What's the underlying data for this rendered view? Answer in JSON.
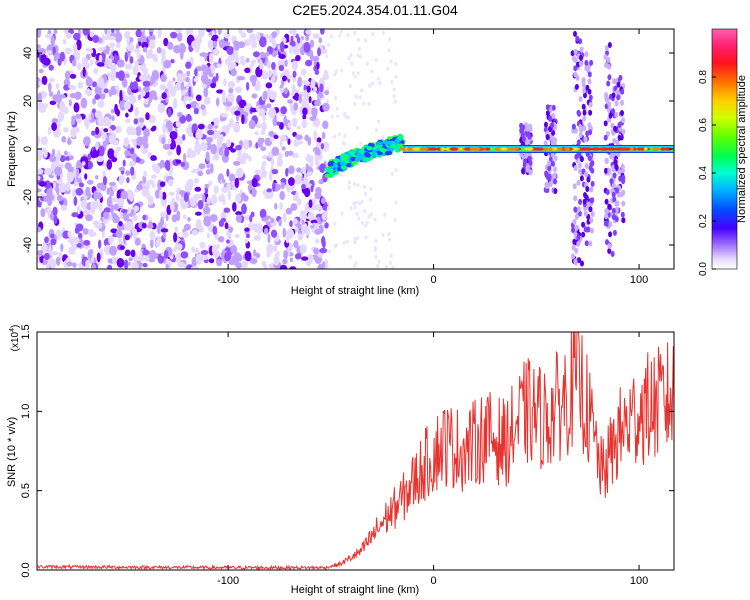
{
  "figure": {
    "title": "C2E5.2024.354.01.11.G04"
  },
  "chart_data": [
    {
      "type": "heatmap",
      "title": "C2E5.2024.354.01.11.G04",
      "xlabel": "Height of straight line (km)",
      "ylabel": "Frequency (Hz)",
      "xlim": [
        -193,
        117
      ],
      "ylim": [
        -50,
        50
      ],
      "x_ticks": [
        -100,
        0,
        100
      ],
      "y_ticks": [
        -40,
        -20,
        0,
        20,
        40
      ],
      "colorbar": {
        "label": "Normalized spectral amplitude",
        "range": [
          0.0,
          1.0
        ],
        "ticks": [
          0.0,
          0.2,
          0.4,
          0.6,
          0.8
        ],
        "tick_labels": [
          "0.0",
          "0.2",
          "0.4",
          "0.6",
          "0.8"
        ],
        "colormap": [
          "#ffffff",
          "#d9c8ff",
          "#7b00ff",
          "#2b00ff",
          "#0050ff",
          "#00c8ff",
          "#00ff80",
          "#40ff00",
          "#c0ff00",
          "#ffd000",
          "#ff8000",
          "#ff0040",
          "#ff50a0"
        ]
      },
      "regions": [
        {
          "description_key": "noise",
          "x_range": [
            -193,
            -52
          ],
          "amplitude": 0.05
        },
        {
          "description_key": "signal-rising",
          "x_range": [
            -52,
            -15
          ],
          "freq_start": -10,
          "freq_end": 3,
          "amplitude": 0.45
        },
        {
          "description_key": "signal-carrier",
          "x_range": [
            -15,
            117
          ],
          "freq": 0,
          "amplitude": 0.85
        }
      ]
    },
    {
      "type": "line",
      "xlabel": "Height of straight line (km)",
      "ylabel": "SNR (10 * v/v)",
      "scale_label": "(x10",
      "scale_exponent": "4",
      "scale_suffix": ")",
      "xlim": [
        -193,
        117
      ],
      "ylim": [
        0,
        1.5
      ],
      "x_ticks": [
        -100,
        0,
        100
      ],
      "y_ticks": [
        0.0,
        0.5,
        1.0,
        1.5
      ],
      "y_tick_labels": [
        "0.0",
        "0.5",
        "1.0",
        "1.5"
      ],
      "line_color": "#e8322e",
      "series_envelope": [
        {
          "x": -193,
          "y": 0.02
        },
        {
          "x": -100,
          "y": 0.015
        },
        {
          "x": -52,
          "y": 0.015
        },
        {
          "x": -45,
          "y": 0.04
        },
        {
          "x": -35,
          "y": 0.12
        },
        {
          "x": -25,
          "y": 0.3
        },
        {
          "x": -15,
          "y": 0.45
        },
        {
          "x": -5,
          "y": 0.65
        },
        {
          "x": 5,
          "y": 0.8
        },
        {
          "x": 15,
          "y": 0.75
        },
        {
          "x": 25,
          "y": 0.85
        },
        {
          "x": 35,
          "y": 0.8
        },
        {
          "x": 45,
          "y": 1.0
        },
        {
          "x": 55,
          "y": 0.95
        },
        {
          "x": 65,
          "y": 1.1
        },
        {
          "x": 70,
          "y": 1.25
        },
        {
          "x": 75,
          "y": 1.0
        },
        {
          "x": 82,
          "y": 0.6
        },
        {
          "x": 90,
          "y": 0.85
        },
        {
          "x": 100,
          "y": 1.0
        },
        {
          "x": 110,
          "y": 1.05
        },
        {
          "x": 117,
          "y": 1.1
        }
      ]
    }
  ]
}
